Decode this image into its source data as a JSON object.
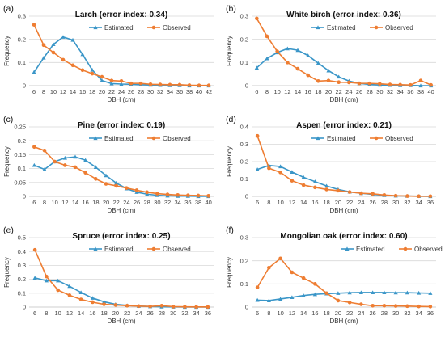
{
  "colors": {
    "estimated": "#3a96c8",
    "observed": "#ee7d32",
    "grid": "#d9d9d9",
    "axis": "#bfbfbf"
  },
  "chart_data": [
    {
      "type": "line",
      "panel_label": "(a)",
      "title": "Larch (error index: 0.34)",
      "xlabel": "DBH (cm)",
      "ylabel": "Frequency",
      "ylim": [
        0,
        0.3
      ],
      "yticks": [
        "0",
        "0.1",
        "0.2",
        "0.3"
      ],
      "categories": [
        "6",
        "8",
        "10",
        "12",
        "14",
        "16",
        "18",
        "20",
        "22",
        "24",
        "26",
        "28",
        "30",
        "32",
        "34",
        "36",
        "38",
        "40",
        "42"
      ],
      "legend_position": "top-center",
      "series": [
        {
          "name": "Estimated",
          "values": [
            0.058,
            0.12,
            0.178,
            0.21,
            0.197,
            0.135,
            0.068,
            0.022,
            0.009,
            0.007,
            0.006,
            0.004,
            0.003,
            0.002,
            0.001,
            0.001,
            0.0,
            0.0,
            0.0
          ]
        },
        {
          "name": "Observed",
          "values": [
            0.263,
            0.175,
            0.143,
            0.112,
            0.088,
            0.067,
            0.052,
            0.038,
            0.022,
            0.02,
            0.01,
            0.01,
            0.006,
            0.005,
            0.004,
            0.004,
            0.002,
            0.001,
            0.001
          ]
        }
      ]
    },
    {
      "type": "line",
      "panel_label": "(b)",
      "title": "White birch (error index: 0.36)",
      "xlabel": "DBH (cm)",
      "ylabel": "Frequency",
      "ylim": [
        0,
        0.3
      ],
      "yticks": [
        "0",
        "0.1",
        "0.2",
        "0.3"
      ],
      "categories": [
        "6",
        "8",
        "10",
        "12",
        "14",
        "16",
        "18",
        "20",
        "22",
        "24",
        "26",
        "28",
        "30",
        "32",
        "34",
        "36",
        "38",
        "40"
      ],
      "legend_position": "top-center",
      "series": [
        {
          "name": "Estimated",
          "values": [
            0.077,
            0.117,
            0.143,
            0.16,
            0.153,
            0.13,
            0.097,
            0.065,
            0.038,
            0.02,
            0.01,
            0.005,
            0.003,
            0.002,
            0.001,
            0.001,
            0.0,
            0.0
          ]
        },
        {
          "name": "Observed",
          "values": [
            0.29,
            0.213,
            0.148,
            0.1,
            0.073,
            0.045,
            0.02,
            0.022,
            0.015,
            0.014,
            0.01,
            0.01,
            0.008,
            0.005,
            0.004,
            0.003,
            0.022,
            0.003
          ]
        }
      ]
    },
    {
      "type": "line",
      "panel_label": "(c)",
      "title": "Pine (error index: 0.19)",
      "xlabel": "DBH (cm)",
      "ylabel": "Frequency",
      "ylim": [
        0,
        0.25
      ],
      "yticks": [
        "0",
        "0.05",
        "0.1",
        "0.15",
        "0.2",
        "0.25"
      ],
      "categories": [
        "6",
        "8",
        "10",
        "12",
        "14",
        "16",
        "18",
        "20",
        "22",
        "24",
        "26",
        "28",
        "30",
        "32",
        "34",
        "36",
        "38",
        "40"
      ],
      "legend_position": "top-center",
      "series": [
        {
          "name": "Estimated",
          "values": [
            0.112,
            0.097,
            0.125,
            0.138,
            0.142,
            0.13,
            0.105,
            0.075,
            0.048,
            0.028,
            0.015,
            0.008,
            0.004,
            0.002,
            0.001,
            0.001,
            0.0,
            0.0
          ]
        },
        {
          "name": "Observed",
          "values": [
            0.178,
            0.165,
            0.125,
            0.112,
            0.105,
            0.085,
            0.063,
            0.045,
            0.038,
            0.03,
            0.022,
            0.015,
            0.01,
            0.007,
            0.005,
            0.004,
            0.003,
            0.002
          ]
        }
      ]
    },
    {
      "type": "line",
      "panel_label": "(d)",
      "title": "Aspen (error index: 0.21)",
      "xlabel": "DBH (cm)",
      "ylabel": "Frequency",
      "ylim": [
        0,
        0.4
      ],
      "yticks": [
        "0",
        "0.1",
        "0.2",
        "0.3",
        "0.4"
      ],
      "categories": [
        "6",
        "8",
        "10",
        "12",
        "14",
        "16",
        "18",
        "20",
        "22",
        "24",
        "26",
        "28",
        "30",
        "32",
        "34",
        "36"
      ],
      "legend_position": "top-center",
      "series": [
        {
          "name": "Estimated",
          "values": [
            0.155,
            0.178,
            0.172,
            0.14,
            0.11,
            0.085,
            0.06,
            0.04,
            0.026,
            0.018,
            0.011,
            0.006,
            0.003,
            0.002,
            0.001,
            0.0
          ]
        },
        {
          "name": "Observed",
          "values": [
            0.348,
            0.162,
            0.138,
            0.09,
            0.065,
            0.052,
            0.04,
            0.033,
            0.025,
            0.018,
            0.015,
            0.008,
            0.004,
            0.002,
            0.001,
            0.001
          ]
        }
      ]
    },
    {
      "type": "line",
      "panel_label": "(e)",
      "title": "Spruce (error index: 0.25)",
      "xlabel": "DBH (cm)",
      "ylabel": "Frequency",
      "ylim": [
        0,
        0.5
      ],
      "yticks": [
        "0",
        "0.1",
        "0.2",
        "0.3",
        "0.4",
        "0.5"
      ],
      "categories": [
        "6",
        "8",
        "10",
        "12",
        "14",
        "16",
        "18",
        "20",
        "22",
        "24",
        "26",
        "28",
        "30",
        "32",
        "34",
        "36"
      ],
      "legend_position": "top-center",
      "series": [
        {
          "name": "Estimated",
          "values": [
            0.21,
            0.19,
            0.19,
            0.15,
            0.105,
            0.065,
            0.038,
            0.02,
            0.012,
            0.007,
            0.004,
            0.002,
            0.001,
            0.0,
            0.0,
            0.0
          ]
        },
        {
          "name": "Observed",
          "values": [
            0.412,
            0.22,
            0.122,
            0.085,
            0.055,
            0.035,
            0.02,
            0.015,
            0.01,
            0.007,
            0.005,
            0.01,
            0.003,
            0.002,
            0.001,
            0.001
          ]
        }
      ]
    },
    {
      "type": "line",
      "panel_label": "(f)",
      "title": "Mongolian oak (error index: 0.60)",
      "xlabel": "DBH (cm)",
      "ylabel": "Frequency",
      "ylim": [
        0,
        0.3
      ],
      "yticks": [
        "0",
        "0.1",
        "0.2",
        "0.3"
      ],
      "categories": [
        "6",
        "8",
        "10",
        "12",
        "14",
        "16",
        "18",
        "20",
        "22",
        "24",
        "26",
        "28",
        "30",
        "32",
        "34",
        "36"
      ],
      "legend_position": "top-right",
      "series": [
        {
          "name": "Estimated",
          "values": [
            0.03,
            0.028,
            0.035,
            0.042,
            0.05,
            0.055,
            0.058,
            0.06,
            0.062,
            0.063,
            0.063,
            0.063,
            0.062,
            0.062,
            0.061,
            0.06
          ]
        },
        {
          "name": "Observed",
          "values": [
            0.085,
            0.17,
            0.21,
            0.15,
            0.125,
            0.1,
            0.06,
            0.028,
            0.02,
            0.012,
            0.006,
            0.006,
            0.005,
            0.004,
            0.003,
            0.002
          ]
        }
      ]
    }
  ]
}
